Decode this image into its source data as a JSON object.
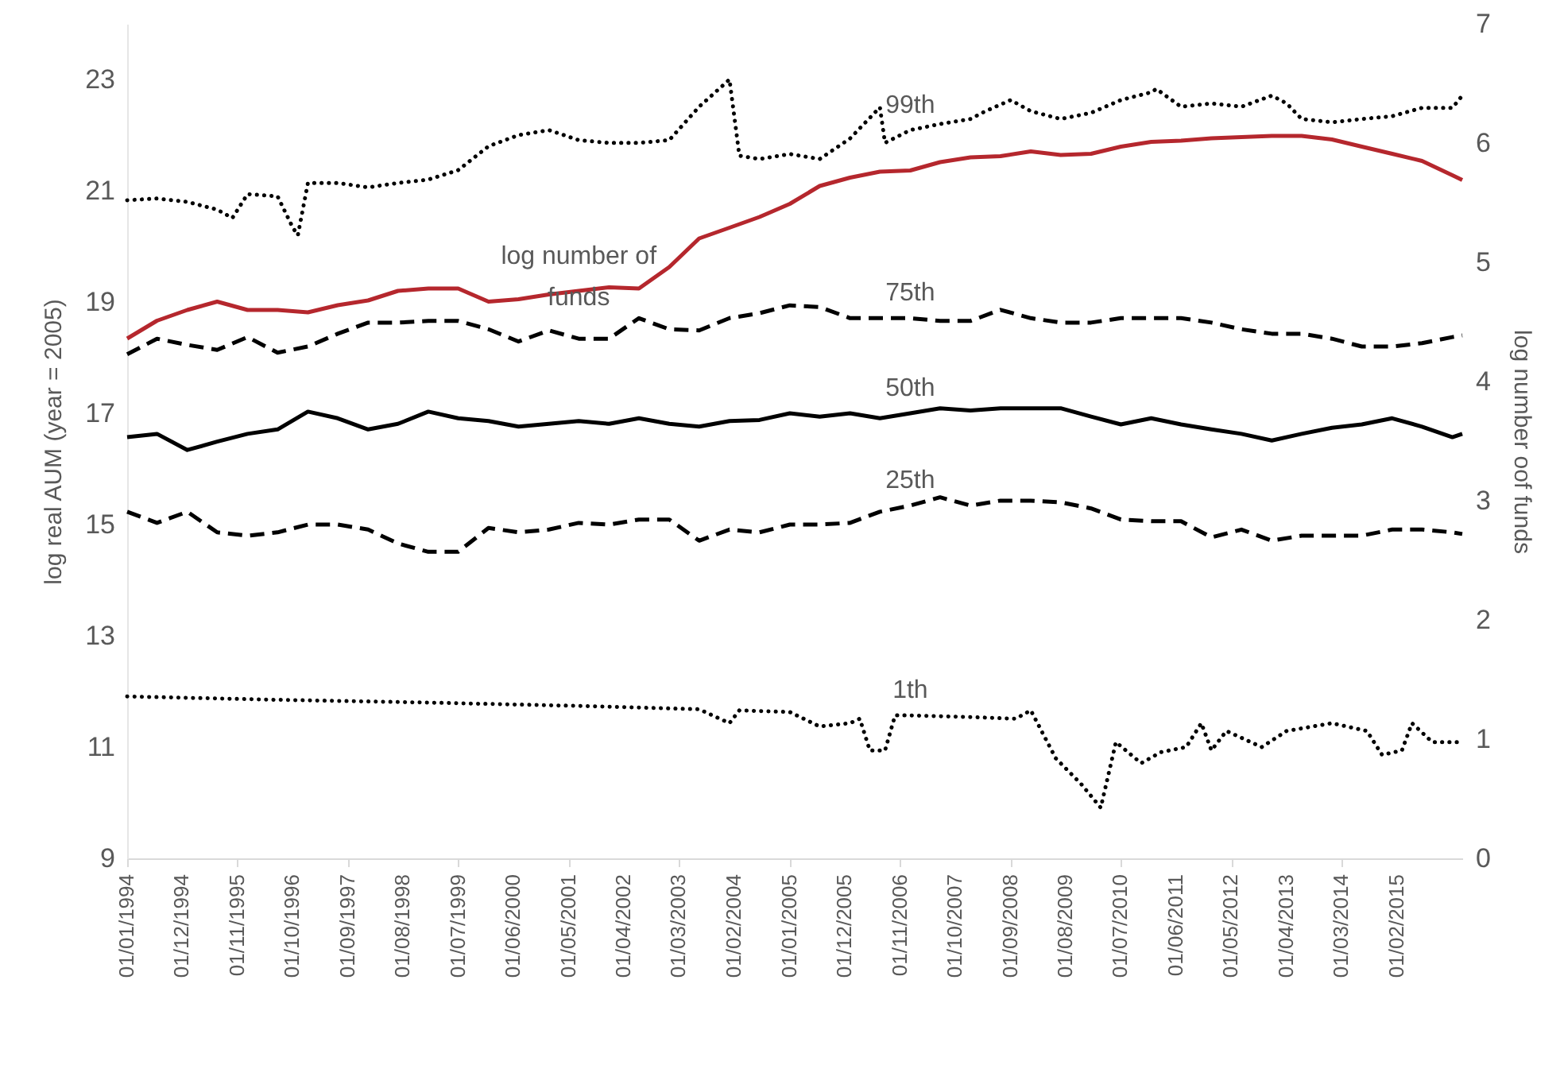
{
  "chart_data": {
    "type": "line",
    "ylabel": "log real AUM (year = 2005)",
    "y2label": "log number oof funds",
    "x": [
      "1994-01",
      "1994-07",
      "1995-01",
      "1995-07",
      "1996-01",
      "1996-07",
      "1997-01",
      "1997-07",
      "1998-01",
      "1998-07",
      "1999-01",
      "1999-07",
      "2000-01",
      "2000-07",
      "2001-01",
      "2001-07",
      "2002-01",
      "2002-07",
      "2003-01",
      "2003-07",
      "2004-01",
      "2004-07",
      "2005-01",
      "2005-07",
      "2006-01",
      "2006-07",
      "2007-01",
      "2007-07",
      "2008-01",
      "2008-07",
      "2009-01",
      "2009-07",
      "2010-01",
      "2010-07",
      "2011-01",
      "2011-07",
      "2012-01",
      "2012-07",
      "2013-01",
      "2013-07",
      "2014-01",
      "2014-07",
      "2015-01",
      "2015-07",
      "2016-01",
      "2016-03"
    ],
    "xlim": [
      "1994-01",
      "2016-03"
    ],
    "xticks": [
      {
        "value": "1994-01",
        "label": "01/01/1994"
      },
      {
        "value": "1994-12",
        "label": "01/12/1994"
      },
      {
        "value": "1995-11",
        "label": "01/11/1995"
      },
      {
        "value": "1996-10",
        "label": "01/10/1996"
      },
      {
        "value": "1997-09",
        "label": "01/09/1997"
      },
      {
        "value": "1998-08",
        "label": "01/08/1998"
      },
      {
        "value": "1999-07",
        "label": "01/07/1999"
      },
      {
        "value": "2000-06",
        "label": "01/06/2000"
      },
      {
        "value": "2001-05",
        "label": "01/05/2001"
      },
      {
        "value": "2002-04",
        "label": "01/04/2002"
      },
      {
        "value": "2003-03",
        "label": "01/03/2003"
      },
      {
        "value": "2004-02",
        "label": "01/02/2004"
      },
      {
        "value": "2005-01",
        "label": "01/01/2005"
      },
      {
        "value": "2005-12",
        "label": "01/12/2005"
      },
      {
        "value": "2006-11",
        "label": "01/11/2006"
      },
      {
        "value": "2007-10",
        "label": "01/10/2007"
      },
      {
        "value": "2008-09",
        "label": "01/09/2008"
      },
      {
        "value": "2009-08",
        "label": "01/08/2009"
      },
      {
        "value": "2010-07",
        "label": "01/07/2010"
      },
      {
        "value": "2011-06",
        "label": "01/06/2011"
      },
      {
        "value": "2012-05",
        "label": "01/05/2012"
      },
      {
        "value": "2013-04",
        "label": "01/04/2013"
      },
      {
        "value": "2014-03",
        "label": "01/03/2014"
      },
      {
        "value": "2015-02",
        "label": "01/02/2015"
      }
    ],
    "ylim": [
      9,
      24
    ],
    "yticks": [
      9,
      11,
      13,
      15,
      17,
      19,
      21,
      23
    ],
    "y2lim": [
      0,
      7
    ],
    "y2ticks": [
      0,
      1,
      2,
      3,
      4,
      5,
      6,
      7
    ],
    "series": [
      {
        "name": "99th",
        "color": "#000000",
        "line_style": "dotted",
        "x": [
          "1994-01",
          "1994-07",
          "1995-01",
          "1995-07",
          "1995-10",
          "1996-01",
          "1996-07",
          "1996-10",
          "1996-11",
          "1997-01",
          "1997-07",
          "1998-01",
          "1998-07",
          "1999-01",
          "1999-07",
          "2000-01",
          "2000-07",
          "2001-01",
          "2001-07",
          "2002-01",
          "2002-07",
          "2003-01",
          "2003-07",
          "2004-01",
          "2004-03",
          "2004-07",
          "2005-01",
          "2005-07",
          "2006-01",
          "2006-07",
          "2006-08",
          "2007-01",
          "2007-07",
          "2008-01",
          "2008-04",
          "2008-09",
          "2009-01",
          "2009-07",
          "2010-01",
          "2010-07",
          "2011-01",
          "2011-02",
          "2011-07",
          "2012-01",
          "2012-07",
          "2013-01",
          "2013-04",
          "2013-07",
          "2014-01",
          "2014-07",
          "2015-01",
          "2015-07",
          "2016-01",
          "2016-03"
        ],
        "values": [
          20.83,
          20.86,
          20.8,
          20.66,
          20.51,
          20.94,
          20.9,
          20.34,
          20.2,
          21.14,
          21.14,
          21.06,
          21.14,
          21.2,
          21.37,
          21.8,
          22.0,
          22.09,
          21.91,
          21.86,
          21.86,
          21.91,
          22.51,
          23.0,
          21.63,
          21.57,
          21.66,
          21.57,
          21.94,
          22.5,
          21.86,
          22.09,
          22.2,
          22.29,
          22.43,
          22.63,
          22.43,
          22.29,
          22.4,
          22.63,
          22.77,
          22.83,
          22.51,
          22.57,
          22.51,
          22.71,
          22.57,
          22.29,
          22.23,
          22.29,
          22.34,
          22.49,
          22.49,
          22.71
        ]
      },
      {
        "name": "75th",
        "color": "#000000",
        "line_style": "dashed",
        "values": [
          18.06,
          18.34,
          18.23,
          18.14,
          18.37,
          18.09,
          18.2,
          18.43,
          18.63,
          18.63,
          18.66,
          18.66,
          18.51,
          18.29,
          18.49,
          18.34,
          18.34,
          18.71,
          18.51,
          18.49,
          18.71,
          18.8,
          18.94,
          18.91,
          18.71,
          18.71,
          18.71,
          18.66,
          18.66,
          18.86,
          18.71,
          18.63,
          18.63,
          18.71,
          18.71,
          18.71,
          18.63,
          18.51,
          18.43,
          18.43,
          18.34,
          18.2,
          18.2,
          18.26,
          18.37,
          18.4
        ]
      },
      {
        "name": "50th",
        "color": "#000000",
        "line_style": "solid",
        "values": [
          16.57,
          16.63,
          16.34,
          16.49,
          16.63,
          16.71,
          17.03,
          16.91,
          16.71,
          16.81,
          17.03,
          16.91,
          16.86,
          16.76,
          16.81,
          16.86,
          16.81,
          16.91,
          16.81,
          16.76,
          16.86,
          16.88,
          17.0,
          16.94,
          17.0,
          16.91,
          17.0,
          17.09,
          17.05,
          17.09,
          17.09,
          17.09,
          16.94,
          16.8,
          16.91,
          16.8,
          16.71,
          16.63,
          16.51,
          16.63,
          16.74,
          16.8,
          16.91,
          16.76,
          16.57,
          16.63
        ]
      },
      {
        "name": "25th",
        "color": "#000000",
        "line_style": "dashed",
        "values": [
          15.23,
          15.03,
          15.23,
          14.86,
          14.8,
          14.86,
          15.0,
          15.0,
          14.91,
          14.66,
          14.51,
          14.51,
          14.94,
          14.86,
          14.91,
          15.03,
          15.0,
          15.09,
          15.09,
          14.71,
          14.91,
          14.86,
          15.0,
          15.0,
          15.03,
          15.23,
          15.34,
          15.49,
          15.34,
          15.43,
          15.43,
          15.4,
          15.29,
          15.09,
          15.06,
          15.06,
          14.77,
          14.91,
          14.71,
          14.8,
          14.8,
          14.8,
          14.91,
          14.91,
          14.86,
          14.83
        ]
      },
      {
        "name": "1th",
        "color": "#000000",
        "line_style": "dotted",
        "x": [
          "1994-01",
          "1996-07",
          "1999-01",
          "2001-07",
          "2003-07",
          "2004-01",
          "2004-03",
          "2005-01",
          "2005-07",
          "2006-01",
          "2006-03",
          "2006-05",
          "2006-08",
          "2006-10",
          "2007-01",
          "2008-01",
          "2008-10",
          "2009-01",
          "2009-06",
          "2009-11",
          "2010-03",
          "2010-06",
          "2010-11",
          "2011-03",
          "2011-08",
          "2011-11",
          "2012-01",
          "2012-04",
          "2012-11",
          "2013-04",
          "2014-01",
          "2014-08",
          "2014-11",
          "2015-03",
          "2015-05",
          "2015-09",
          "2016-03"
        ],
        "values": [
          11.91,
          11.85,
          11.8,
          11.74,
          11.68,
          11.43,
          11.66,
          11.63,
          11.37,
          11.43,
          11.51,
          10.94,
          10.94,
          11.57,
          11.57,
          11.54,
          11.51,
          11.66,
          10.8,
          10.34,
          9.91,
          11.09,
          10.71,
          10.91,
          11.0,
          11.43,
          10.94,
          11.29,
          11.0,
          11.29,
          11.43,
          11.29,
          10.86,
          10.94,
          11.43,
          11.09,
          11.09
        ]
      },
      {
        "name": "log number of funds",
        "color": "#b5272d",
        "line_style": "solid",
        "axis": "y2",
        "values": [
          4.36,
          4.51,
          4.6,
          4.67,
          4.6,
          4.6,
          4.58,
          4.64,
          4.68,
          4.76,
          4.78,
          4.78,
          4.67,
          4.69,
          4.73,
          4.76,
          4.79,
          4.78,
          4.96,
          5.2,
          5.29,
          5.38,
          5.49,
          5.64,
          5.71,
          5.76,
          5.77,
          5.84,
          5.88,
          5.89,
          5.93,
          5.9,
          5.91,
          5.97,
          6.01,
          6.02,
          6.04,
          6.05,
          6.06,
          6.06,
          6.03,
          5.97,
          5.91,
          5.85,
          5.73,
          5.69
        ]
      }
    ]
  }
}
